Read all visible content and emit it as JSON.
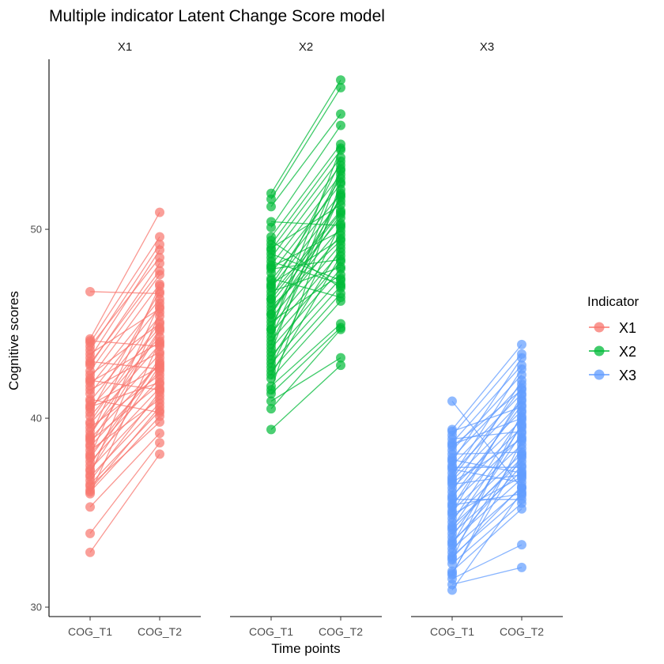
{
  "chart_data": {
    "type": "line",
    "title": "Multiple indicator Latent Change Score model",
    "xlabel": "Time points",
    "ylabel": "Cognitive scores",
    "ylim": [
      29.5,
      59
    ],
    "yticks": [
      30,
      40,
      50
    ],
    "categories": [
      "COG_T1",
      "COG_T2"
    ],
    "legend": {
      "title": "Indicator",
      "placement": "right",
      "entries": [
        "X1",
        "X2",
        "X3"
      ]
    },
    "facets": [
      {
        "name": "X1",
        "color": "#F8766D",
        "pairs": [
          [
            46.7,
            46.6
          ],
          [
            32.9,
            38.1
          ],
          [
            33.9,
            38.7
          ],
          [
            35.3,
            39.2
          ],
          [
            44.2,
            50.9
          ],
          [
            44.0,
            49.6
          ],
          [
            43.6,
            49.2
          ],
          [
            43.2,
            48.9
          ],
          [
            42.8,
            48.2
          ],
          [
            42.5,
            47.6
          ],
          [
            42.1,
            47.1
          ],
          [
            41.7,
            46.3
          ],
          [
            41.3,
            45.9
          ],
          [
            40.9,
            45.4
          ],
          [
            40.5,
            44.8
          ],
          [
            40.1,
            44.3
          ],
          [
            39.7,
            43.9
          ],
          [
            39.3,
            43.4
          ],
          [
            38.9,
            42.9
          ],
          [
            38.5,
            42.5
          ],
          [
            38.1,
            42.1
          ],
          [
            37.7,
            41.6
          ],
          [
            37.3,
            41.2
          ],
          [
            36.9,
            40.8
          ],
          [
            36.5,
            40.4
          ],
          [
            36.1,
            40.1
          ],
          [
            36.0,
            44.1
          ],
          [
            37.0,
            45.6
          ],
          [
            38.0,
            46.1
          ],
          [
            39.0,
            47.0
          ],
          [
            41.0,
            40.3
          ],
          [
            42.0,
            41.5
          ],
          [
            43.0,
            42.6
          ],
          [
            44.1,
            43.8
          ],
          [
            36.4,
            39.8
          ],
          [
            37.5,
            43.2
          ],
          [
            38.6,
            44.6
          ],
          [
            39.8,
            45.1
          ],
          [
            40.6,
            41.9
          ],
          [
            41.9,
            44.0
          ],
          [
            43.4,
            45.8
          ],
          [
            37.2,
            42.8
          ],
          [
            38.3,
            41.0
          ],
          [
            39.5,
            42.3
          ],
          [
            40.3,
            46.7
          ],
          [
            41.5,
            43.5
          ],
          [
            42.9,
            47.8
          ],
          [
            36.7,
            41.4
          ],
          [
            37.9,
            43.0
          ],
          [
            39.1,
            44.7
          ],
          [
            40.7,
            42.7
          ],
          [
            42.3,
            45.0
          ],
          [
            43.8,
            48.5
          ],
          [
            36.2,
            40.6
          ],
          [
            38.8,
            41.8
          ]
        ]
      },
      {
        "name": "X2",
        "color": "#00BA38",
        "pairs": [
          [
            39.4,
            42.8
          ],
          [
            51.9,
            57.9
          ],
          [
            51.6,
            57.5
          ],
          [
            51.2,
            56.1
          ],
          [
            50.1,
            55.5
          ],
          [
            49.6,
            54.5
          ],
          [
            49.2,
            54.2
          ],
          [
            48.9,
            53.8
          ],
          [
            48.5,
            53.4
          ],
          [
            48.1,
            52.9
          ],
          [
            47.7,
            52.4
          ],
          [
            47.3,
            51.9
          ],
          [
            46.9,
            51.5
          ],
          [
            46.5,
            51.0
          ],
          [
            46.1,
            50.6
          ],
          [
            45.7,
            50.1
          ],
          [
            45.3,
            49.7
          ],
          [
            44.9,
            49.2
          ],
          [
            44.5,
            48.8
          ],
          [
            44.1,
            48.3
          ],
          [
            43.7,
            47.9
          ],
          [
            43.3,
            47.4
          ],
          [
            42.9,
            47.0
          ],
          [
            42.5,
            46.6
          ],
          [
            42.1,
            46.2
          ],
          [
            41.7,
            45.0
          ],
          [
            41.3,
            44.8
          ],
          [
            40.9,
            43.2
          ],
          [
            40.5,
            44.7
          ],
          [
            48.3,
            47.1
          ],
          [
            47.4,
            46.4
          ],
          [
            46.7,
            48.0
          ],
          [
            45.9,
            49.4
          ],
          [
            45.1,
            47.6
          ],
          [
            44.3,
            52.1
          ],
          [
            43.5,
            53.1
          ],
          [
            42.7,
            50.3
          ],
          [
            49.0,
            51.3
          ],
          [
            48.0,
            49.9
          ],
          [
            47.0,
            52.7
          ],
          [
            46.3,
            53.6
          ],
          [
            45.5,
            50.8
          ],
          [
            44.7,
            54.3
          ],
          [
            43.9,
            51.8
          ],
          [
            43.1,
            49.0
          ],
          [
            42.3,
            48.6
          ],
          [
            41.5,
            52.5
          ],
          [
            50.4,
            50.2
          ],
          [
            49.4,
            46.9
          ],
          [
            48.7,
            47.3
          ],
          [
            47.9,
            48.4
          ],
          [
            47.1,
            49.5
          ],
          [
            46.3,
            50.9
          ],
          [
            45.5,
            51.7
          ],
          [
            44.7,
            53.2
          ]
        ]
      },
      {
        "name": "X3",
        "color": "#619CFF",
        "pairs": [
          [
            40.9,
            36.3
          ],
          [
            39.4,
            43.9
          ],
          [
            39.1,
            43.4
          ],
          [
            38.7,
            42.8
          ],
          [
            38.3,
            42.3
          ],
          [
            37.9,
            41.8
          ],
          [
            37.5,
            41.3
          ],
          [
            37.1,
            40.9
          ],
          [
            36.7,
            40.4
          ],
          [
            36.3,
            39.9
          ],
          [
            35.9,
            39.5
          ],
          [
            35.5,
            39.0
          ],
          [
            35.1,
            38.6
          ],
          [
            34.7,
            38.1
          ],
          [
            34.3,
            37.7
          ],
          [
            33.9,
            37.2
          ],
          [
            33.5,
            36.8
          ],
          [
            33.1,
            36.3
          ],
          [
            32.7,
            35.9
          ],
          [
            32.3,
            35.5
          ],
          [
            31.9,
            35.2
          ],
          [
            31.5,
            33.3
          ],
          [
            31.2,
            32.1
          ],
          [
            30.9,
            36.1
          ],
          [
            32.9,
            38.4
          ],
          [
            33.7,
            39.2
          ],
          [
            34.5,
            40.1
          ],
          [
            35.3,
            41.0
          ],
          [
            36.1,
            42.0
          ],
          [
            36.9,
            42.6
          ],
          [
            37.7,
            43.2
          ],
          [
            38.5,
            41.5
          ],
          [
            39.3,
            40.6
          ],
          [
            37.3,
            36.6
          ],
          [
            36.5,
            37.0
          ],
          [
            35.7,
            35.7
          ],
          [
            34.9,
            36.9
          ],
          [
            34.1,
            37.9
          ],
          [
            33.3,
            39.7
          ],
          [
            32.5,
            40.3
          ],
          [
            31.7,
            38.8
          ],
          [
            38.9,
            39.3
          ],
          [
            38.1,
            38.2
          ],
          [
            37.4,
            37.4
          ],
          [
            36.6,
            38.9
          ],
          [
            35.8,
            40.7
          ],
          [
            35.0,
            41.2
          ],
          [
            34.2,
            39.6
          ],
          [
            33.4,
            37.5
          ],
          [
            32.6,
            36.4
          ],
          [
            31.8,
            38.0
          ],
          [
            38.6,
            40.0
          ],
          [
            37.8,
            37.1
          ],
          [
            36.8,
            41.6
          ],
          [
            35.4,
            36.0
          ]
        ]
      }
    ]
  }
}
